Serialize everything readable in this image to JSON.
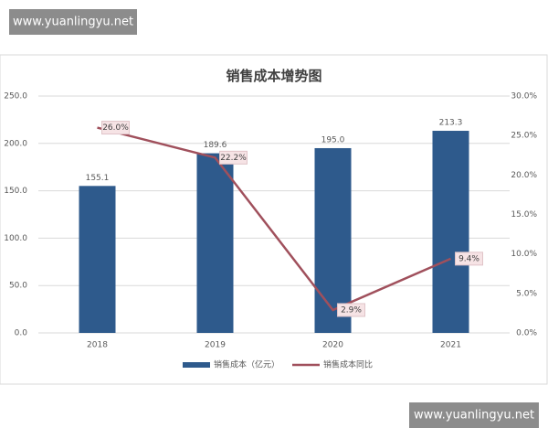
{
  "watermarks": [
    "www.yuanlingyu.net",
    "www.yuanlingyu.net"
  ],
  "chart_data": {
    "type": "bar",
    "title": "销售成本增势图",
    "categories": [
      "2018",
      "2019",
      "2020",
      "2021"
    ],
    "series": [
      {
        "name": "销售成本（亿元）",
        "type": "bar",
        "color": "#2e5a8c",
        "values": [
          155.1,
          189.6,
          195.0,
          213.3
        ],
        "value_labels": [
          "155.1",
          "189.6",
          "195.0",
          "213.3"
        ]
      },
      {
        "name": "销售成本同比",
        "type": "line",
        "axis": "y2",
        "color": "#a0505c",
        "values": [
          26.0,
          22.2,
          2.9,
          9.4
        ],
        "value_labels": [
          "26.0%",
          "22.2%",
          "2.9%",
          "9.4%"
        ]
      }
    ],
    "ylim": [
      0,
      250
    ],
    "yticks": [
      {
        "value": 0,
        "label": "0.0"
      },
      {
        "value": 50,
        "label": "50.0"
      },
      {
        "value": 100,
        "label": "100.0"
      },
      {
        "value": 150,
        "label": "150.0"
      },
      {
        "value": 200,
        "label": "200.0"
      },
      {
        "value": 250,
        "label": "250.0"
      }
    ],
    "y2lim": [
      0,
      30
    ],
    "y2ticks": [
      {
        "value": 0,
        "label": "0.0%"
      },
      {
        "value": 5,
        "label": "5.0%"
      },
      {
        "value": 10,
        "label": "10.0%"
      },
      {
        "value": 15,
        "label": "15.0%"
      },
      {
        "value": 20,
        "label": "20.0%"
      },
      {
        "value": 25,
        "label": "25.0%"
      },
      {
        "value": 30,
        "label": "30.0%"
      }
    ],
    "grid": true
  }
}
